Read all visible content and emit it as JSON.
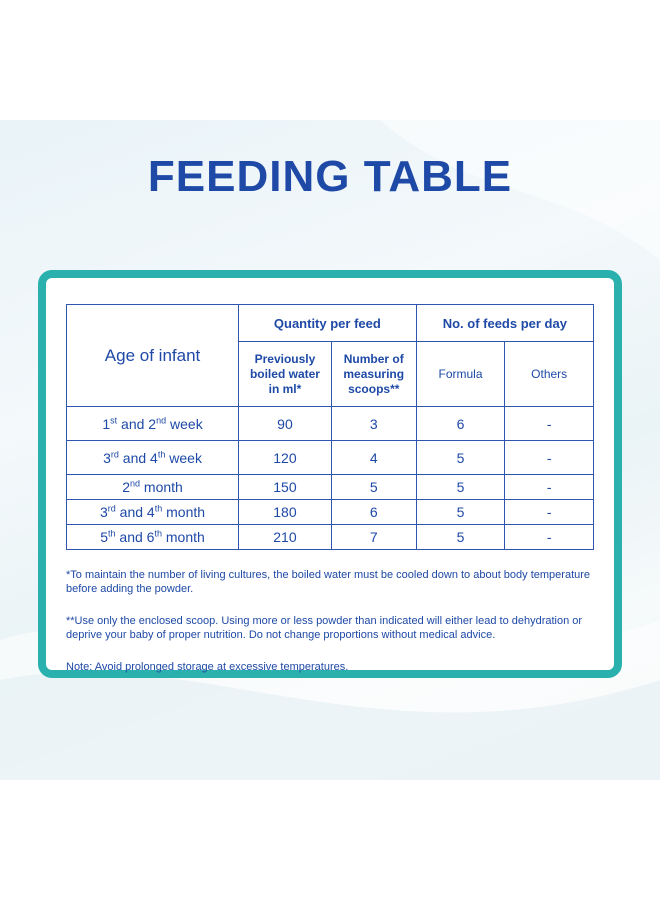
{
  "title": "FEEDING TABLE",
  "table": {
    "age_header": "Age of infant",
    "qty_header": "Quantity per feed",
    "feeds_header": "No. of feeds per day",
    "col_water": [
      "Previously",
      "boiled water",
      "in ml*"
    ],
    "col_scoops": [
      "Number of",
      "measuring",
      "scoops**"
    ],
    "col_formula": "Formula",
    "col_others": "Others",
    "rows": [
      {
        "age_a": "1",
        "sup_a": "st",
        "age_b": " and 2",
        "sup_b": "nd",
        "age_c": " week",
        "water": "90",
        "scoops": "3",
        "formula": "6",
        "others": "-"
      },
      {
        "age_a": "3",
        "sup_a": "rd",
        "age_b": " and 4",
        "sup_b": "th",
        "age_c": " week",
        "water": "120",
        "scoops": "4",
        "formula": "5",
        "others": "-"
      },
      {
        "age_a": "2",
        "sup_a": "nd",
        "age_b": " month",
        "sup_b": "",
        "age_c": "",
        "water": "150",
        "scoops": "5",
        "formula": "5",
        "others": "-"
      },
      {
        "age_a": "3",
        "sup_a": "rd",
        "age_b": " and 4",
        "sup_b": "th",
        "age_c": " month",
        "water": "180",
        "scoops": "6",
        "formula": "5",
        "others": "-"
      },
      {
        "age_a": "5",
        "sup_a": "th",
        "age_b": " and 6",
        "sup_b": "th",
        "age_c": " month",
        "water": "210",
        "scoops": "7",
        "formula": "5",
        "others": "-"
      }
    ]
  },
  "notes": {
    "note1": "*To maintain the number of living cultures, the boiled water must be cooled down to about body temperature before adding the powder.",
    "note2": "**Use only the enclosed scoop. Using more or less powder than indicated will either lead to dehydration or deprive your baby of proper nutrition. Do not change proportions without medical advice.",
    "note3": "Note: Avoid prolonged storage at excessive temperatures."
  },
  "colors": {
    "accent": "#1e49a6",
    "frame": "#2ab0ad"
  }
}
